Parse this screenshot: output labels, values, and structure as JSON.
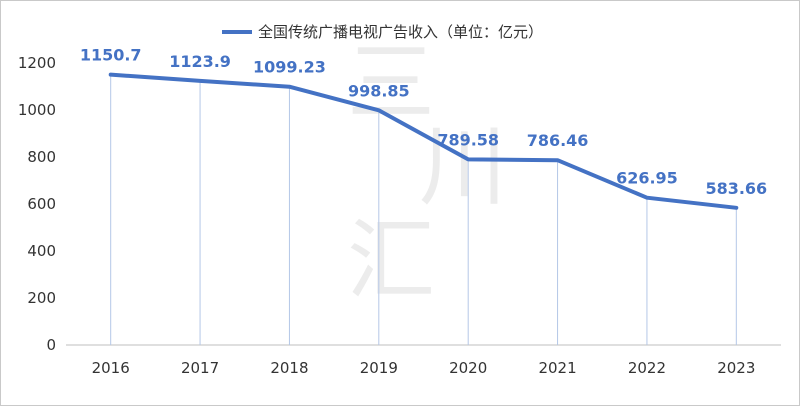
{
  "chart_data": {
    "type": "line",
    "title": "",
    "xlabel": "",
    "ylabel": "",
    "categories": [
      "2016",
      "2017",
      "2018",
      "2019",
      "2020",
      "2021",
      "2022",
      "2023"
    ],
    "series": [
      {
        "name": "全国传统广播电视广告收入（单位：亿元）",
        "values": [
          1150.7,
          1123.9,
          1099.23,
          998.85,
          789.58,
          786.46,
          626.95,
          583.66
        ],
        "labels": [
          "1150.7",
          "1123.9",
          "1099.23",
          "998.85",
          "789.58",
          "786.46",
          "626.95",
          "583.66"
        ],
        "color": "#4472c4"
      }
    ],
    "ylim": [
      0,
      1200
    ],
    "yticks": [
      0,
      200,
      400,
      600,
      800,
      1000,
      1200
    ],
    "ytick_labels": [
      "0",
      "200",
      "400",
      "600",
      "800",
      "1000",
      "1200"
    ],
    "grid": false,
    "drop_lines": true,
    "legend_position": "top"
  },
  "watermark": {
    "chars": [
      "三",
      "川",
      "汇"
    ]
  }
}
